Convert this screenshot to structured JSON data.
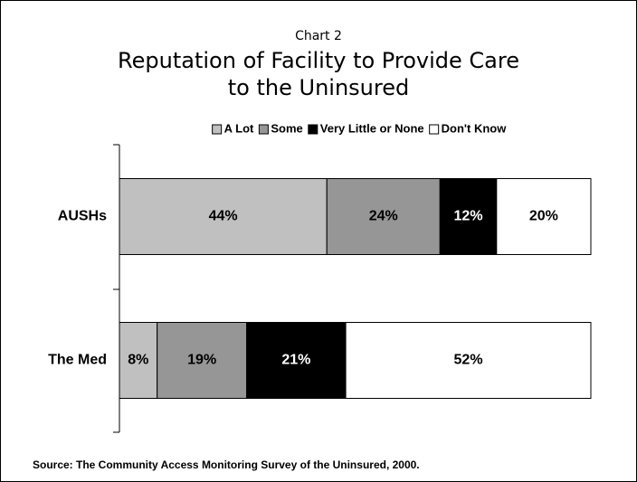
{
  "chart_data": {
    "type": "stacked-barh",
    "subtitle": "Chart 2",
    "title": [
      "Reputation of Facility to Provide Care",
      "to the Uninsured"
    ],
    "categories": [
      "AUSHs",
      "The Med"
    ],
    "series": [
      {
        "name": "A Lot",
        "color": "#c0c0c0",
        "values": [
          44,
          8
        ],
        "value_labels": [
          "44%",
          "8%"
        ]
      },
      {
        "name": "Some",
        "color": "#969696",
        "values": [
          24,
          19
        ],
        "value_labels": [
          "24%",
          "19%"
        ]
      },
      {
        "name": "Very Little or None",
        "color": "#000000",
        "values": [
          12,
          21
        ],
        "value_labels": [
          "12%",
          "21%"
        ]
      },
      {
        "name": "Don't Know",
        "color": "#ffffff",
        "values": [
          20,
          52
        ],
        "value_labels": [
          "20%",
          "52%"
        ]
      }
    ],
    "xlim": [
      0,
      100
    ],
    "legend": "top",
    "source": "Source: The Community Access Monitoring Survey of the Uninsured, 2000."
  }
}
